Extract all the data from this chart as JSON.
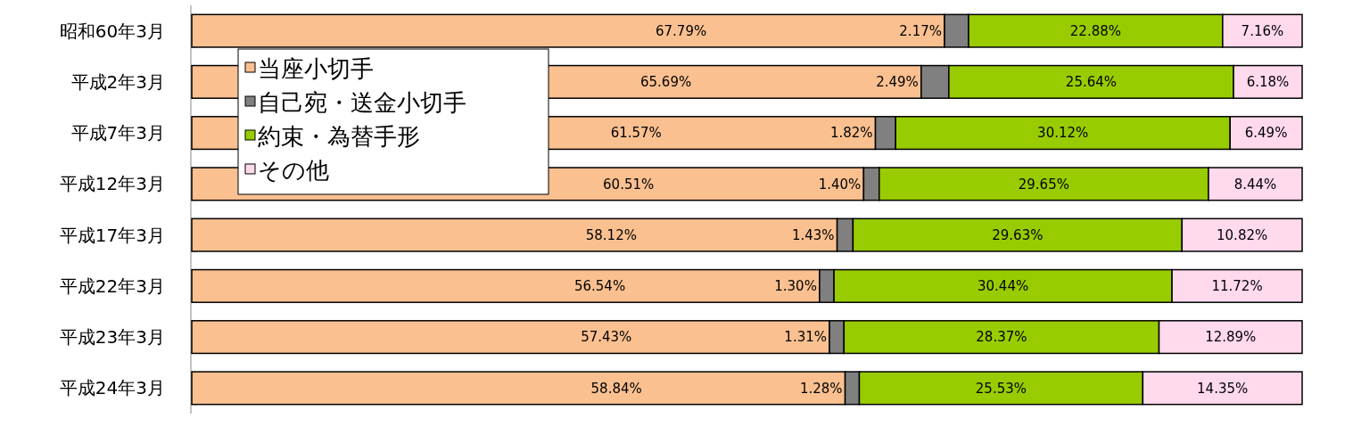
{
  "chart_data": {
    "type": "bar",
    "orientation": "horizontal",
    "stacked": true,
    "xlim": [
      0,
      100
    ],
    "tick_labels": "y",
    "legend": "top left",
    "categories": [
      "昭和60年3月",
      "平成2年3月",
      "平成7年3月",
      "平成12年3月",
      "平成17年3月",
      "平成22年3月",
      "平成23年3月",
      "平成24年3月"
    ],
    "series": [
      {
        "name": "当座小切手",
        "color": "#fac090",
        "values": [
          67.79,
          65.69,
          61.57,
          60.51,
          58.12,
          56.54,
          57.43,
          58.84
        ],
        "value_labels": [
          "67.79%",
          "65.69%",
          "61.57%",
          "60.51%",
          "58.12%",
          "56.54%",
          "57.43%",
          "58.84%"
        ]
      },
      {
        "name": "自己宛・送金小切手",
        "color": "#808080",
        "values": [
          2.17,
          2.49,
          1.82,
          1.4,
          1.43,
          1.3,
          1.31,
          1.28
        ],
        "value_labels": [
          "2.17%",
          "2.49%",
          "1.82%",
          "1.40%",
          "1.43%",
          "1.30%",
          "1.31%",
          "1.28%"
        ]
      },
      {
        "name": "約束・為替手形",
        "color": "#99cc00",
        "values": [
          22.88,
          25.64,
          30.12,
          29.65,
          29.63,
          30.44,
          28.37,
          25.53
        ],
        "value_labels": [
          "22.88%",
          "25.64%",
          "30.12%",
          "29.65%",
          "29.63%",
          "30.44%",
          "28.37%",
          "25.53%"
        ]
      },
      {
        "name": "その他",
        "color": "#ffd9ec",
        "values": [
          7.16,
          6.18,
          6.49,
          8.44,
          10.82,
          11.72,
          12.89,
          14.35
        ],
        "value_labels": [
          "7.16%",
          "6.18%",
          "6.49%",
          "8.44%",
          "10.82%",
          "11.72%",
          "12.89%",
          "14.35%"
        ]
      }
    ]
  }
}
